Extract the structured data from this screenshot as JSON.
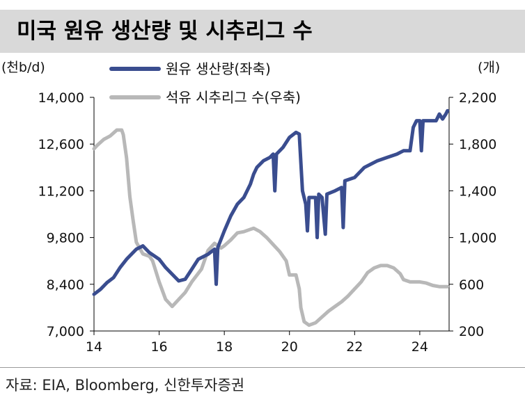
{
  "title": "미국 원유 생산량 및 시추리그 수",
  "source": "자료: EIA, Bloomberg, 신한투자증권",
  "colors": {
    "production": "#3a4d8f",
    "rigs": "#b8b8b8",
    "title_bg": "#d9d9d9"
  },
  "chart_data": {
    "type": "line",
    "left_unit": "(천b/d)",
    "right_unit": "(개)",
    "x_ticks": [
      "14",
      "16",
      "18",
      "20",
      "22",
      "24"
    ],
    "y_left_ticks": [
      "7,000",
      "8,400",
      "9,800",
      "11,200",
      "12,600",
      "14,000"
    ],
    "y_right_ticks": [
      "200",
      "600",
      "1,000",
      "1,400",
      "1,800",
      "2,200"
    ],
    "xlim": [
      2014,
      2024.9
    ],
    "ylim_left": [
      7000,
      14000
    ],
    "ylim_right": [
      200,
      2200
    ],
    "legend_position": "top-center",
    "grid": false,
    "series": [
      {
        "name": "원유 생산량(좌축)",
        "axis": "left",
        "points": [
          [
            2014.0,
            8100
          ],
          [
            2014.2,
            8250
          ],
          [
            2014.4,
            8450
          ],
          [
            2014.6,
            8600
          ],
          [
            2014.8,
            8900
          ],
          [
            2015.0,
            9150
          ],
          [
            2015.3,
            9450
          ],
          [
            2015.5,
            9550
          ],
          [
            2015.7,
            9350
          ],
          [
            2016.0,
            9150
          ],
          [
            2016.2,
            8900
          ],
          [
            2016.4,
            8700
          ],
          [
            2016.6,
            8500
          ],
          [
            2016.8,
            8550
          ],
          [
            2017.0,
            8850
          ],
          [
            2017.2,
            9150
          ],
          [
            2017.5,
            9300
          ],
          [
            2017.7,
            9450
          ],
          [
            2017.75,
            8400
          ],
          [
            2017.8,
            9500
          ],
          [
            2018.0,
            10000
          ],
          [
            2018.2,
            10450
          ],
          [
            2018.4,
            10800
          ],
          [
            2018.6,
            11000
          ],
          [
            2018.8,
            11400
          ],
          [
            2018.9,
            11700
          ],
          [
            2019.0,
            11900
          ],
          [
            2019.2,
            12100
          ],
          [
            2019.4,
            12200
          ],
          [
            2019.5,
            12300
          ],
          [
            2019.55,
            11200
          ],
          [
            2019.6,
            12300
          ],
          [
            2019.8,
            12500
          ],
          [
            2020.0,
            12800
          ],
          [
            2020.2,
            12950
          ],
          [
            2020.3,
            12900
          ],
          [
            2020.4,
            11200
          ],
          [
            2020.5,
            10800
          ],
          [
            2020.55,
            10000
          ],
          [
            2020.6,
            11000
          ],
          [
            2020.8,
            11000
          ],
          [
            2020.85,
            9800
          ],
          [
            2020.9,
            11100
          ],
          [
            2021.0,
            11000
          ],
          [
            2021.1,
            9900
          ],
          [
            2021.15,
            11100
          ],
          [
            2021.4,
            11200
          ],
          [
            2021.6,
            11300
          ],
          [
            2021.65,
            10100
          ],
          [
            2021.7,
            11500
          ],
          [
            2022.0,
            11600
          ],
          [
            2022.3,
            11900
          ],
          [
            2022.5,
            12000
          ],
          [
            2022.7,
            12100
          ],
          [
            2023.0,
            12200
          ],
          [
            2023.3,
            12300
          ],
          [
            2023.5,
            12400
          ],
          [
            2023.7,
            12400
          ],
          [
            2023.8,
            13100
          ],
          [
            2023.9,
            13300
          ],
          [
            2024.0,
            13300
          ],
          [
            2024.05,
            12400
          ],
          [
            2024.1,
            13300
          ],
          [
            2024.3,
            13300
          ],
          [
            2024.5,
            13300
          ],
          [
            2024.6,
            13500
          ],
          [
            2024.7,
            13350
          ],
          [
            2024.8,
            13500
          ],
          [
            2024.85,
            13600
          ]
        ]
      },
      {
        "name": "석유 시추리그 수(우축)",
        "axis": "right",
        "points": [
          [
            2014.0,
            1760
          ],
          [
            2014.1,
            1790
          ],
          [
            2014.3,
            1840
          ],
          [
            2014.5,
            1870
          ],
          [
            2014.7,
            1920
          ],
          [
            2014.85,
            1920
          ],
          [
            2014.9,
            1880
          ],
          [
            2015.0,
            1680
          ],
          [
            2015.1,
            1350
          ],
          [
            2015.2,
            1150
          ],
          [
            2015.3,
            960
          ],
          [
            2015.5,
            860
          ],
          [
            2015.7,
            840
          ],
          [
            2015.8,
            800
          ],
          [
            2016.0,
            620
          ],
          [
            2016.2,
            470
          ],
          [
            2016.4,
            410
          ],
          [
            2016.6,
            470
          ],
          [
            2016.8,
            530
          ],
          [
            2017.0,
            620
          ],
          [
            2017.3,
            730
          ],
          [
            2017.5,
            890
          ],
          [
            2017.7,
            950
          ],
          [
            2017.9,
            910
          ],
          [
            2018.0,
            930
          ],
          [
            2018.2,
            980
          ],
          [
            2018.4,
            1040
          ],
          [
            2018.6,
            1050
          ],
          [
            2018.8,
            1070
          ],
          [
            2018.9,
            1080
          ],
          [
            2019.1,
            1050
          ],
          [
            2019.3,
            1000
          ],
          [
            2019.5,
            940
          ],
          [
            2019.7,
            880
          ],
          [
            2019.9,
            800
          ],
          [
            2020.0,
            680
          ],
          [
            2020.1,
            680
          ],
          [
            2020.2,
            680
          ],
          [
            2020.3,
            560
          ],
          [
            2020.35,
            400
          ],
          [
            2020.45,
            280
          ],
          [
            2020.6,
            250
          ],
          [
            2020.8,
            270
          ],
          [
            2021.0,
            320
          ],
          [
            2021.2,
            370
          ],
          [
            2021.4,
            410
          ],
          [
            2021.6,
            450
          ],
          [
            2021.8,
            500
          ],
          [
            2022.0,
            560
          ],
          [
            2022.2,
            620
          ],
          [
            2022.4,
            700
          ],
          [
            2022.6,
            740
          ],
          [
            2022.8,
            760
          ],
          [
            2023.0,
            760
          ],
          [
            2023.2,
            740
          ],
          [
            2023.4,
            690
          ],
          [
            2023.5,
            640
          ],
          [
            2023.7,
            620
          ],
          [
            2024.0,
            620
          ],
          [
            2024.2,
            610
          ],
          [
            2024.4,
            590
          ],
          [
            2024.6,
            580
          ],
          [
            2024.85,
            580
          ]
        ]
      }
    ]
  }
}
